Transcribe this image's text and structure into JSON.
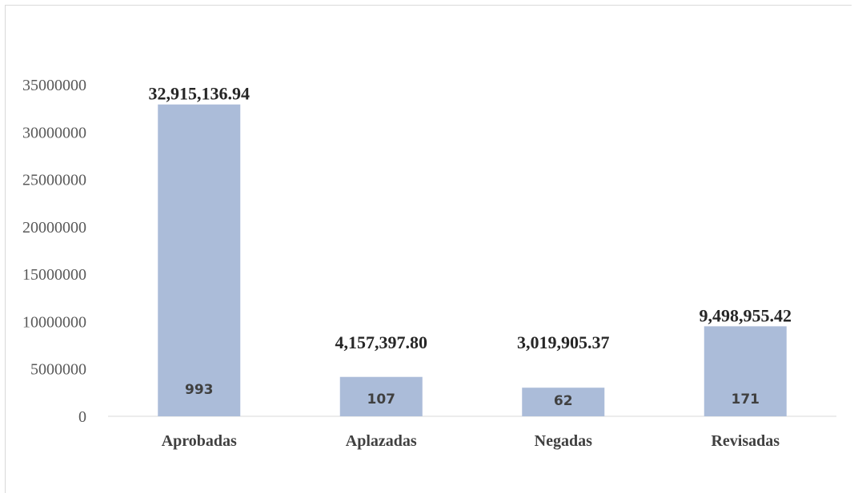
{
  "chart_data": {
    "type": "bar",
    "categories": [
      "Aprobadas",
      "Aplazadas",
      "Negadas",
      "Revisadas"
    ],
    "values": [
      32915136.94,
      4157397.8,
      3019905.37,
      9498955.42
    ],
    "value_labels": [
      "32,915,136.94",
      "4,157,397.80",
      "3,019,905.37",
      "9,498,955.42"
    ],
    "count_labels": [
      "993",
      "107",
      "62",
      "171"
    ],
    "y_ticks": [
      "0",
      "5000000",
      "10000000",
      "15000000",
      "20000000",
      "25000000",
      "30000000",
      "35000000"
    ],
    "ylim": [
      0,
      35000000
    ],
    "title": "",
    "xlabel": "",
    "ylabel": "",
    "grid": false,
    "bar_color": "#abbcd9",
    "axis_color": "#d9d9d9"
  }
}
